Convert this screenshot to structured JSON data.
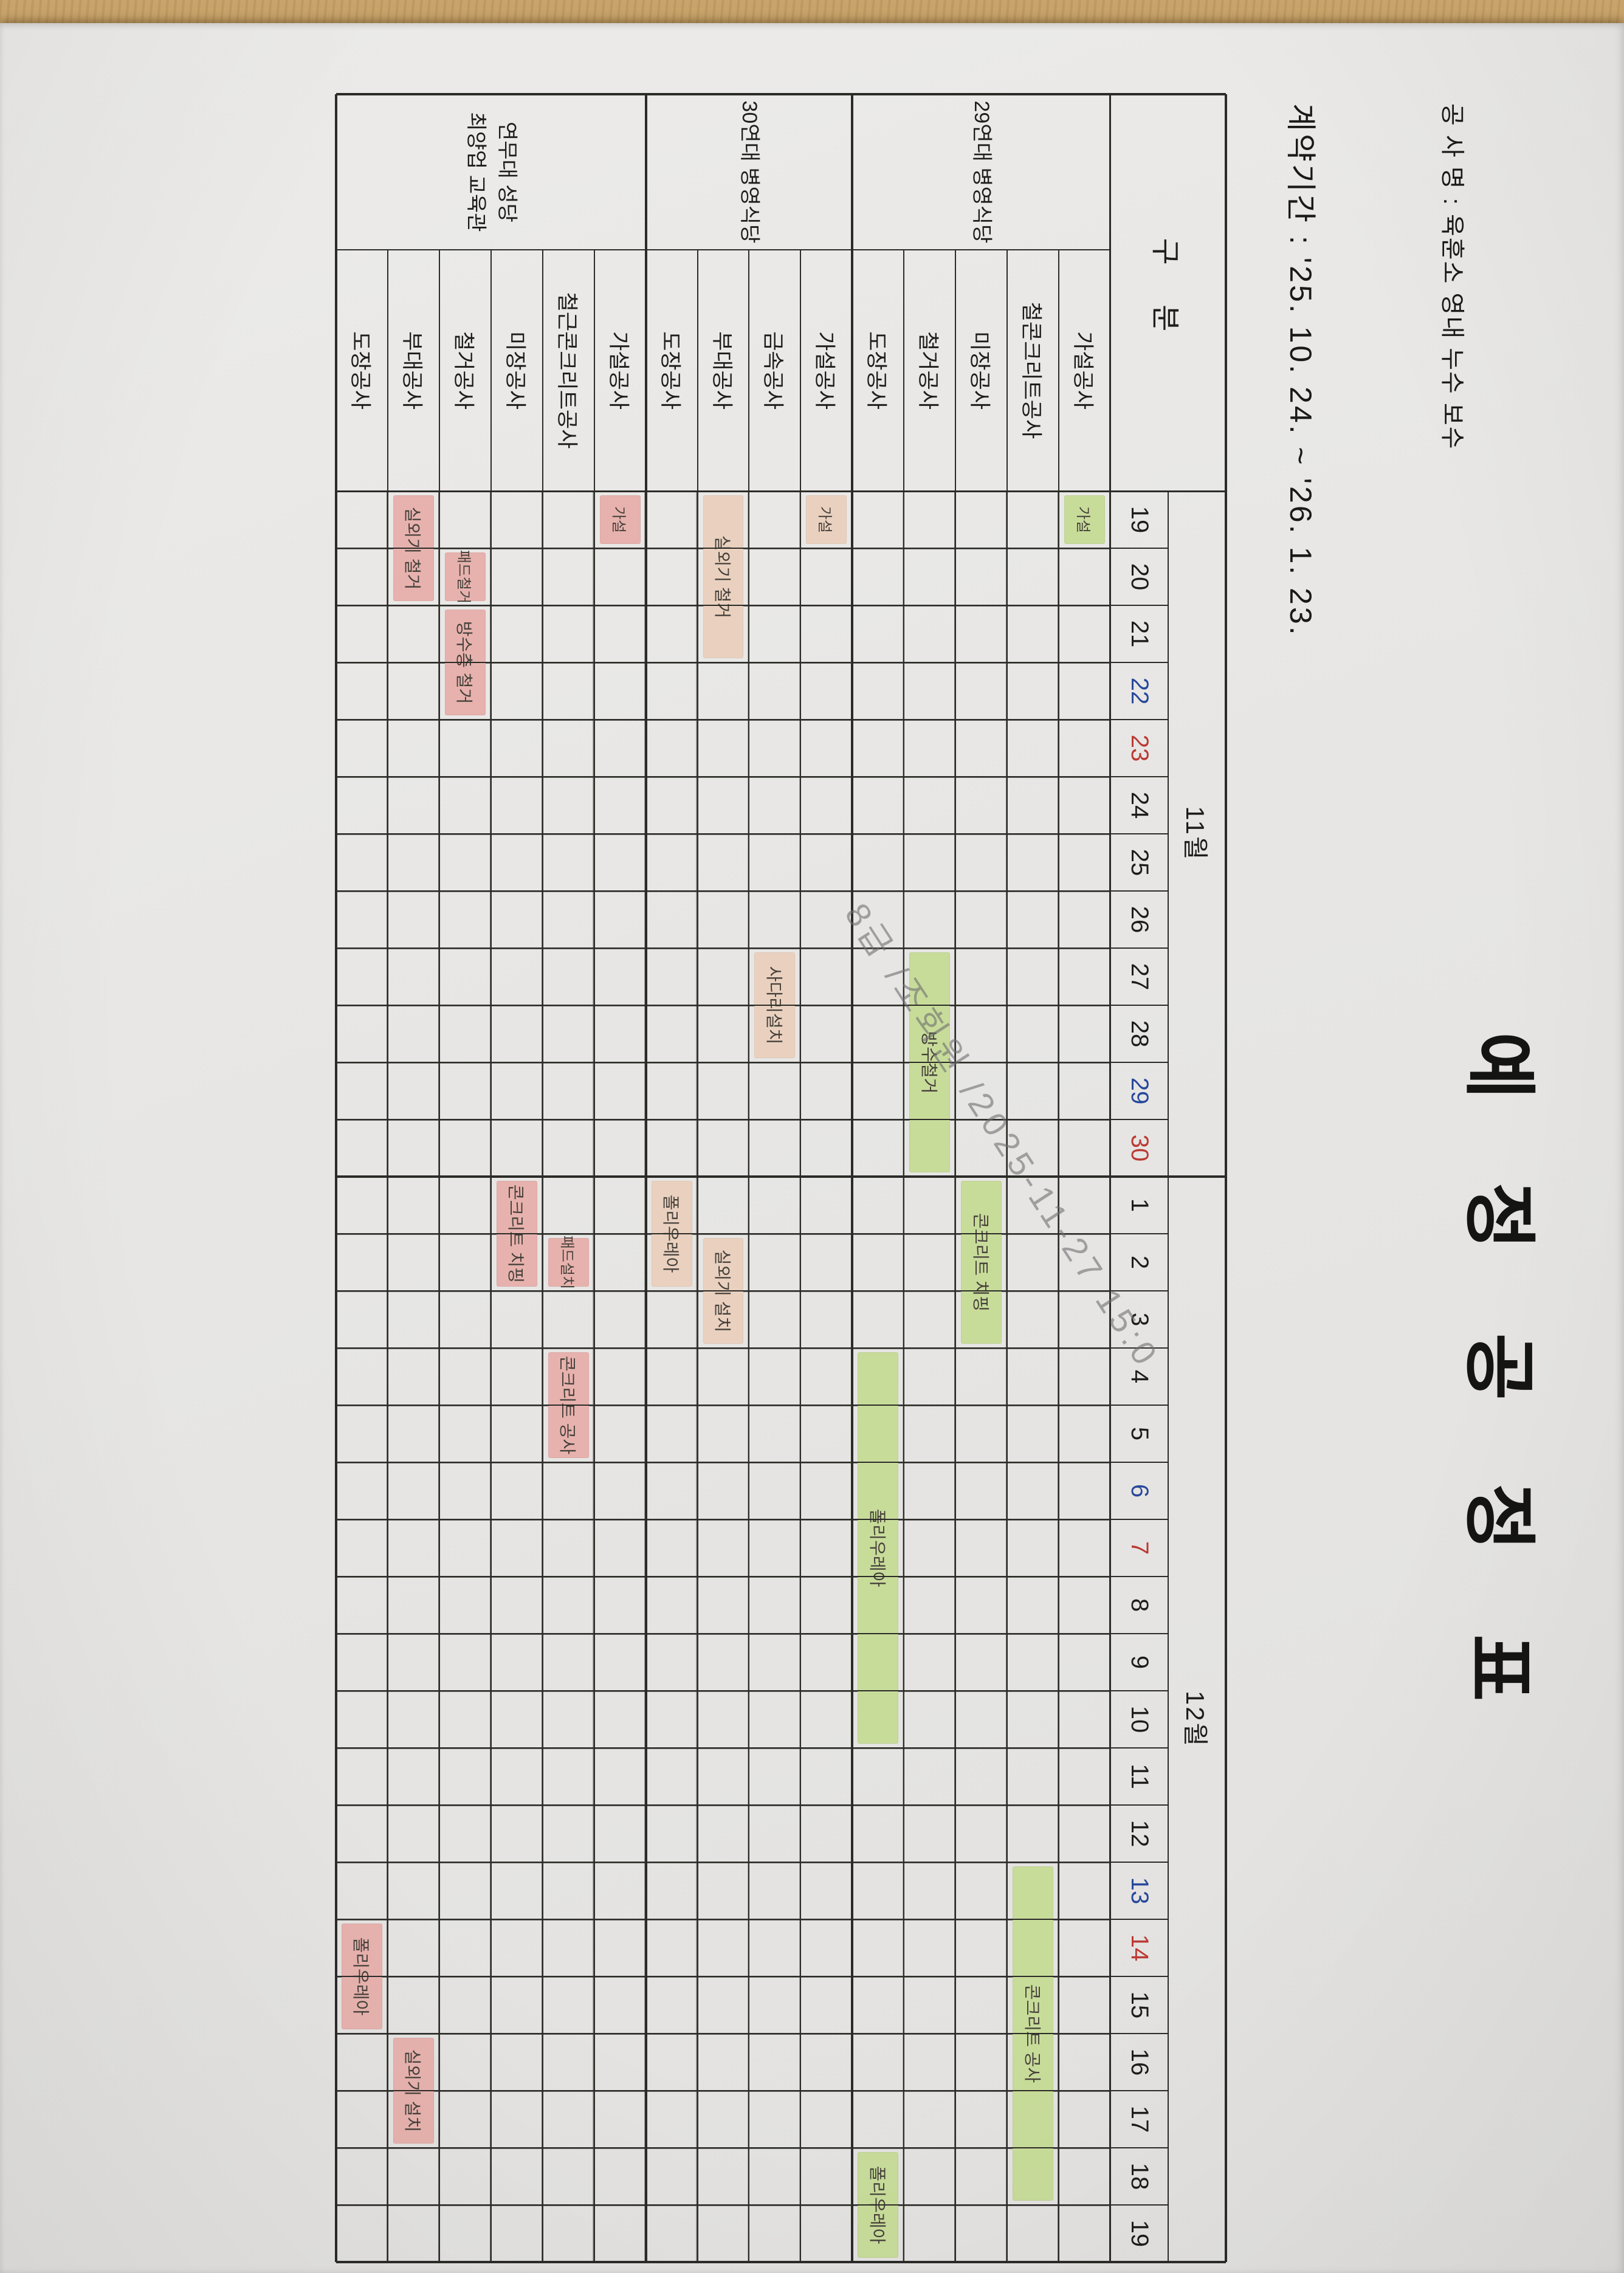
{
  "page": {
    "title": "예 정 공 정 표",
    "project_line": "공 사 명 : 육훈소 영내 누수 보수",
    "contract_line": "계약기간 : '25. 10. 24.  ~  '26. 1. 23.",
    "watermark": "8급 /조회원 /2025-11-27 15:0"
  },
  "colors": {
    "saturday": "#27489b",
    "sunday": "#bb3a34",
    "green": "#c8dc9a",
    "peach": "#ead1bf",
    "rose": "#e7b2ae",
    "paper": "#e8e7e5"
  },
  "chart_data": {
    "type": "gantt",
    "corner_header": "구 분",
    "months": [
      {
        "label": "11월",
        "days": 12
      },
      {
        "label": "12월",
        "days": 19
      }
    ],
    "dates": [
      {
        "t": "19"
      },
      {
        "t": "20"
      },
      {
        "t": "21"
      },
      {
        "t": "22",
        "c": "saturday"
      },
      {
        "t": "23",
        "c": "sunday"
      },
      {
        "t": "24"
      },
      {
        "t": "25"
      },
      {
        "t": "26"
      },
      {
        "t": "27"
      },
      {
        "t": "28"
      },
      {
        "t": "29",
        "c": "saturday"
      },
      {
        "t": "30",
        "c": "sunday"
      },
      {
        "t": "1"
      },
      {
        "t": "2"
      },
      {
        "t": "3"
      },
      {
        "t": "4"
      },
      {
        "t": "5"
      },
      {
        "t": "6",
        "c": "saturday"
      },
      {
        "t": "7",
        "c": "sunday"
      },
      {
        "t": "8"
      },
      {
        "t": "9"
      },
      {
        "t": "10"
      },
      {
        "t": "11"
      },
      {
        "t": "12"
      },
      {
        "t": "13",
        "c": "saturday"
      },
      {
        "t": "14",
        "c": "sunday"
      },
      {
        "t": "15"
      },
      {
        "t": "16"
      },
      {
        "t": "17"
      },
      {
        "t": "18"
      },
      {
        "t": "19"
      }
    ],
    "groups": [
      {
        "name": [
          "29연대 병영식당"
        ],
        "barColor": "green",
        "rows": [
          {
            "label": "가설공사",
            "bars": [
              {
                "text": "가설",
                "col": 1,
                "days": 1
              }
            ]
          },
          {
            "label": "철콘크리트공사",
            "bars": [
              {
                "text": "콘크리트 공사",
                "col": 25,
                "days": 6
              }
            ]
          },
          {
            "label": "미장공사",
            "bars": [
              {
                "text": "콘크리트 치핑",
                "col": 13,
                "days": 3
              }
            ]
          },
          {
            "label": "철거공사",
            "bars": [
              {
                "text": "방수철거",
                "col": 9,
                "days": 4
              }
            ]
          },
          {
            "label": "도장공사",
            "bars": [
              {
                "text": "폴리우레아",
                "col": 16,
                "days": 7
              },
              {
                "text": "폴리우레아",
                "col": 30,
                "days": 2
              }
            ]
          }
        ]
      },
      {
        "name": [
          "30연대 병영식당"
        ],
        "barColor": "peach",
        "rows": [
          {
            "label": "가설공사",
            "bars": [
              {
                "text": "가설",
                "col": 1,
                "days": 1
              }
            ]
          },
          {
            "label": "금속공사",
            "bars": [
              {
                "text": "사다리설치",
                "col": 9,
                "days": 2
              }
            ]
          },
          {
            "label": "부대공사",
            "bars": [
              {
                "text": "실외기 철거",
                "col": 1,
                "days": 3
              },
              {
                "text": "실외기 설치",
                "col": 14,
                "days": 2
              }
            ]
          },
          {
            "label": "도장공사",
            "bars": [
              {
                "text": "폴리우레아",
                "col": 13,
                "days": 2
              }
            ]
          }
        ]
      },
      {
        "name": [
          "연무대 성당",
          "최양업 교육관"
        ],
        "barColor": "rose",
        "rows": [
          {
            "label": "가설공사",
            "bars": [
              {
                "text": "가설",
                "col": 1,
                "days": 1
              }
            ]
          },
          {
            "label": "철근콘크리트공사",
            "bars": [
              {
                "text": "패드설치",
                "col": 14,
                "days": 1
              },
              {
                "text": "콘크리트 공사",
                "col": 16,
                "days": 2
              }
            ]
          },
          {
            "label": "미장공사",
            "bars": [
              {
                "text": "콘크리트 치핑",
                "col": 13,
                "days": 2
              }
            ]
          },
          {
            "label": "철거공사",
            "bars": [
              {
                "text": "패드철거",
                "col": 2,
                "days": 1
              },
              {
                "text": "방수층 철거",
                "col": 3,
                "days": 2
              }
            ]
          },
          {
            "label": "부대공사",
            "bars": [
              {
                "text": "실외기 철거",
                "col": 1,
                "days": 2
              },
              {
                "text": "실외기 설치",
                "col": 28,
                "days": 2
              }
            ]
          },
          {
            "label": "도장공사",
            "bars": [
              {
                "text": "폴리우레아",
                "col": 26,
                "days": 2
              }
            ]
          }
        ]
      }
    ]
  }
}
